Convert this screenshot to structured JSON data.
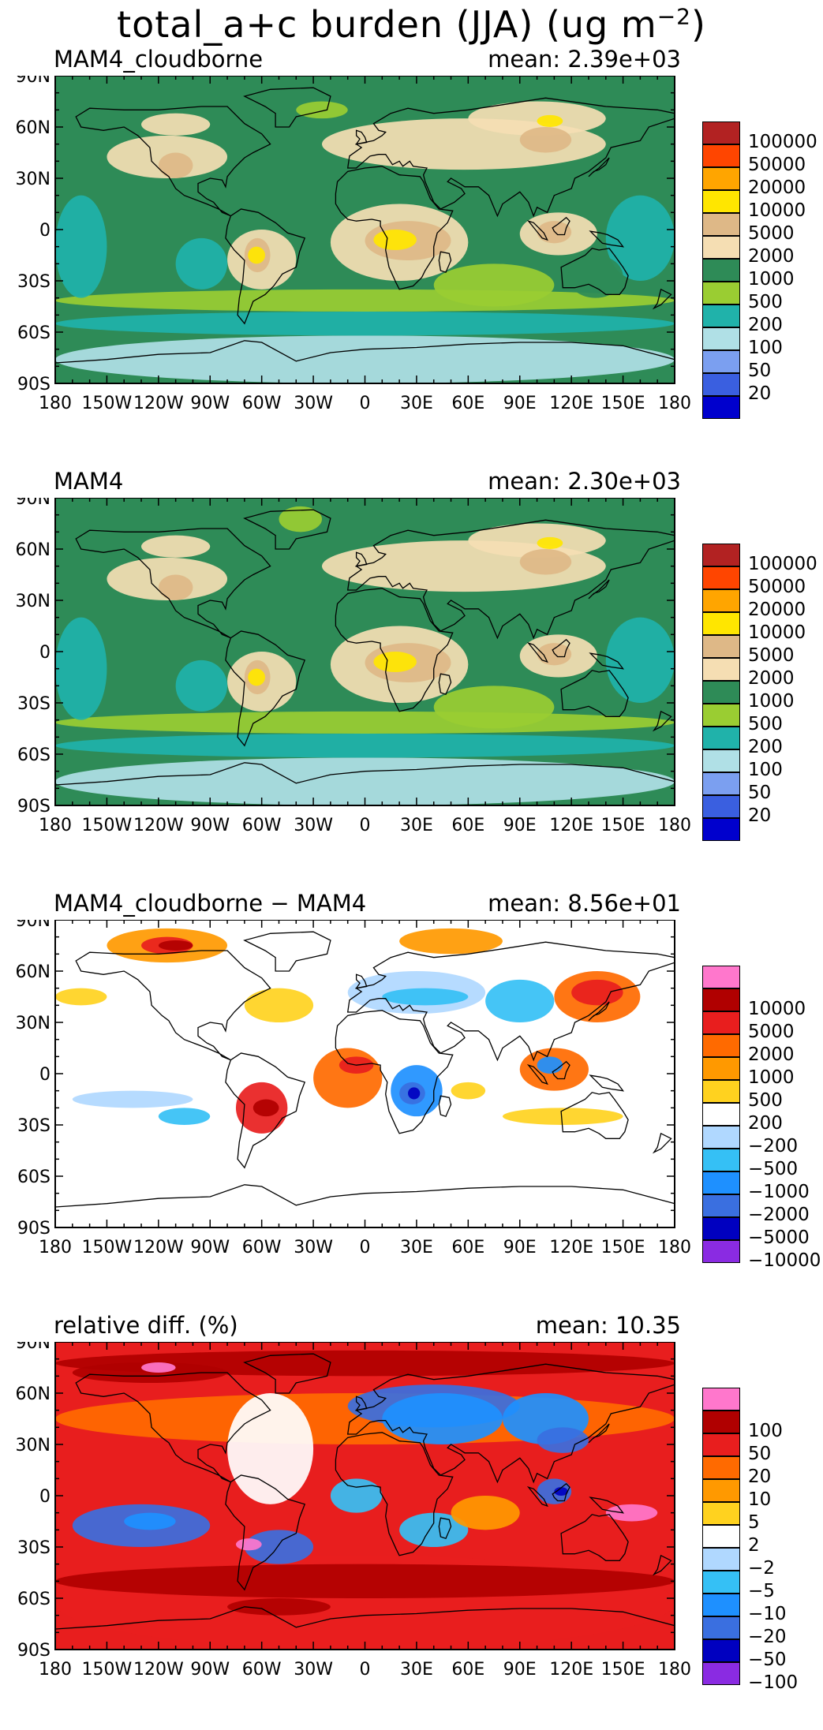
{
  "title_text": "total_a+c burden (JJA) (ug m",
  "title_exp": "−2",
  "title_close": ")",
  "lon_ticks": [
    "180",
    "150W",
    "120W",
    "90W",
    "60W",
    "30W",
    "0",
    "30E",
    "60E",
    "90E",
    "120E",
    "150E",
    "180"
  ],
  "lat_ticks": [
    "90N",
    "60N",
    "30N",
    "0",
    "30S",
    "60S",
    "90S"
  ],
  "panels": [
    {
      "name": "MAM4_cloudborne",
      "mean": "mean: 2.39e+03",
      "background_color": "#2e8b57",
      "legend": [
        {
          "label": "100000",
          "color": "#b22222"
        },
        {
          "label": "50000",
          "color": "#ff4500"
        },
        {
          "label": "20000",
          "color": "#ffa500"
        },
        {
          "label": "10000",
          "color": "#ffe600"
        },
        {
          "label": "5000",
          "color": "#deb887"
        },
        {
          "label": "2000",
          "color": "#f5deb3"
        },
        {
          "label": "1000",
          "color": "#2e8b57"
        },
        {
          "label": "500",
          "color": "#9acd32"
        },
        {
          "label": "200",
          "color": "#20b2aa"
        },
        {
          "label": "100",
          "color": "#b0e0e6"
        },
        {
          "label": "50",
          "color": "#7b9ff0"
        },
        {
          "label": "20",
          "color": "#3a5fe0"
        },
        {
          "label": "",
          "color": "#0000cd"
        }
      ]
    },
    {
      "name": "MAM4",
      "mean": "mean: 2.30e+03",
      "background_color": "#2e8b57",
      "legend": [
        {
          "label": "100000",
          "color": "#b22222"
        },
        {
          "label": "50000",
          "color": "#ff4500"
        },
        {
          "label": "20000",
          "color": "#ffa500"
        },
        {
          "label": "10000",
          "color": "#ffe600"
        },
        {
          "label": "5000",
          "color": "#deb887"
        },
        {
          "label": "2000",
          "color": "#f5deb3"
        },
        {
          "label": "1000",
          "color": "#2e8b57"
        },
        {
          "label": "500",
          "color": "#9acd32"
        },
        {
          "label": "200",
          "color": "#20b2aa"
        },
        {
          "label": "100",
          "color": "#b0e0e6"
        },
        {
          "label": "50",
          "color": "#7b9ff0"
        },
        {
          "label": "20",
          "color": "#3a5fe0"
        },
        {
          "label": "",
          "color": "#0000cd"
        }
      ]
    },
    {
      "name": "MAM4_cloudborne − MAM4",
      "mean": "mean: 8.56e+01",
      "background_color": "#ffffff",
      "legend": [
        {
          "label": "",
          "color": "#ff77cc"
        },
        {
          "label": "10000",
          "color": "#b00000"
        },
        {
          "label": "5000",
          "color": "#e81e1e"
        },
        {
          "label": "2000",
          "color": "#ff6a00"
        },
        {
          "label": "1000",
          "color": "#ff9900"
        },
        {
          "label": "500",
          "color": "#ffd21f"
        },
        {
          "label": "200",
          "color": "#ffffff"
        },
        {
          "label": "−200",
          "color": "#b0d8ff"
        },
        {
          "label": "−500",
          "color": "#35c0f5"
        },
        {
          "label": "−1000",
          "color": "#1e90ff"
        },
        {
          "label": "−2000",
          "color": "#3a6fe0"
        },
        {
          "label": "−5000",
          "color": "#0000c0"
        },
        {
          "label": "−10000",
          "color": "#8a2be2"
        }
      ]
    },
    {
      "name": "relative diff. (%)",
      "mean": "mean: 10.35",
      "background_color": "#e81e1e",
      "legend": [
        {
          "label": "",
          "color": "#ff77cc"
        },
        {
          "label": "100",
          "color": "#b00000"
        },
        {
          "label": "50",
          "color": "#e81e1e"
        },
        {
          "label": "20",
          "color": "#ff6a00"
        },
        {
          "label": "10",
          "color": "#ff9900"
        },
        {
          "label": "5",
          "color": "#ffd21f"
        },
        {
          "label": "2",
          "color": "#ffffff"
        },
        {
          "label": "−2",
          "color": "#b0d8ff"
        },
        {
          "label": "−5",
          "color": "#35c0f5"
        },
        {
          "label": "−10",
          "color": "#1e90ff"
        },
        {
          "label": "−20",
          "color": "#3a6fe0"
        },
        {
          "label": "−50",
          "color": "#0000c0"
        },
        {
          "label": "−100",
          "color": "#8a2be2"
        }
      ]
    }
  ]
}
